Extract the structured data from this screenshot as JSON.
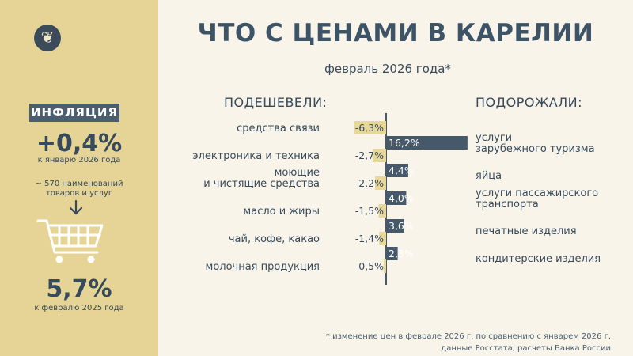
{
  "header": {
    "title": "ЧТО С ЦЕНАМИ В КАРЕЛИИ",
    "subtitle": "февраль 2026 года*"
  },
  "sidebar": {
    "inflation_label": "ИНФЛЯЦИЯ",
    "monthly_value": "+0,4%",
    "monthly_caption": "к январю 2026 года",
    "basket_note_line1": "~ 570 наименований",
    "basket_note_line2": "товаров и услуг",
    "annual_value": "5,7%",
    "annual_caption": "к февралю 2025 года"
  },
  "columns": {
    "cheaper": "ПОДЕШЕВЕЛИ:",
    "pricier": "ПОДОРОЖАЛИ:"
  },
  "footnote": {
    "line1": "* изменение цен в феврале 2026 г. по сравнению с январем 2026 г.",
    "line2": "данные Росстата, расчеты Банка России"
  },
  "colors": {
    "sidebar": "#e5d496",
    "background": "#f8f4e9",
    "negative_bar": "#e8d898",
    "positive_bar": "#46596b",
    "text": "#364a5c"
  },
  "icons": [
    "emblem-icon",
    "arrow-down-icon",
    "shopping-cart-icon"
  ],
  "chart_data": {
    "type": "bar",
    "orientation": "horizontal",
    "unit": "%",
    "series": [
      {
        "categories": [
          [
            "средства связи"
          ],
          [
            "электроника и техника"
          ],
          [
            "моющие",
            "и чистящие средства"
          ],
          [
            "масло и жиры"
          ],
          [
            "чай, кофе, какао"
          ],
          [
            "молочная продукция"
          ]
        ],
        "values": [
          -6.3,
          -2.7,
          -2.2,
          -1.5,
          -1.4,
          -0.5
        ],
        "labels": [
          "-6,3%",
          "-2,7%",
          "-2,2%",
          "-1,5%",
          "-1,4%",
          "-0,5%"
        ]
      },
      {
        "categories": [
          [
            "услуги",
            "зарубежного туризма"
          ],
          [
            "яйца"
          ],
          [
            "услуги пассажирского",
            "транспорта"
          ],
          [
            "печатные изделия"
          ],
          [
            "кондитерские изделия"
          ]
        ],
        "values": [
          16.2,
          4.4,
          4.0,
          3.6,
          2.3
        ],
        "labels": [
          "16,2%",
          "4,4%",
          "4,0%",
          "3,6%",
          "2,3%"
        ]
      }
    ]
  }
}
